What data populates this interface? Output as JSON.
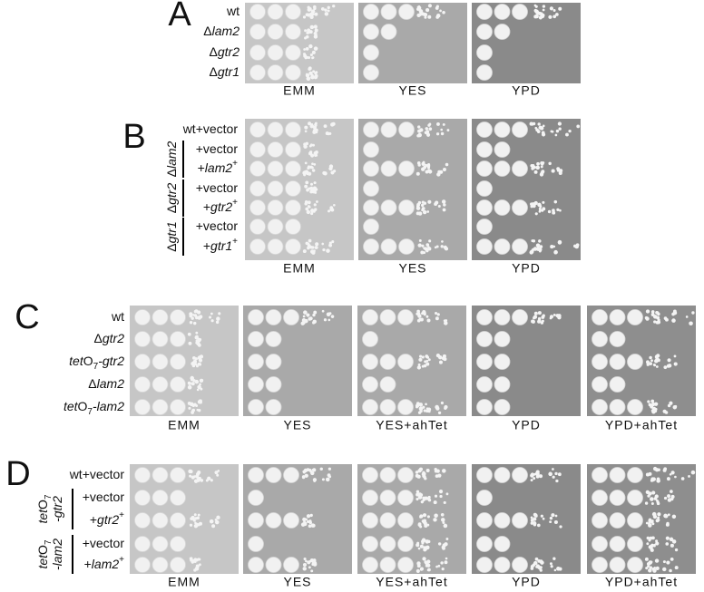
{
  "panels": [
    {
      "letter": "A",
      "plates": [
        "EMM",
        "YES",
        "YPD"
      ],
      "rows": [
        {
          "label": [
            {
              "text": "wt"
            }
          ]
        },
        {
          "label": [
            {
              "text": "Δ"
            },
            {
              "text": "lam2",
              "style": "italic"
            }
          ]
        },
        {
          "label": [
            {
              "text": "Δ"
            },
            {
              "text": "gtr2",
              "style": "italic"
            }
          ]
        },
        {
          "label": [
            {
              "text": "Δ"
            },
            {
              "text": "gtr1",
              "style": "italic"
            }
          ]
        }
      ]
    },
    {
      "letter": "B",
      "plates": [
        "EMM",
        "YES",
        "YPD"
      ],
      "rows": [
        {
          "label": [
            {
              "text": "wt+vector"
            }
          ]
        },
        {
          "group": [
            [
              {
                "text": "Δ"
              },
              {
                "text": "lam2",
                "style": "italic"
              }
            ]
          ],
          "rows": [
            {
              "label": [
                {
                  "text": "+vector"
                }
              ]
            },
            {
              "label": [
                {
                  "text": "+"
                },
                {
                  "text": "lam2",
                  "style": "italic"
                },
                {
                  "text": "+",
                  "style": "sup"
                }
              ]
            }
          ]
        },
        {
          "group": [
            [
              {
                "text": "Δ"
              },
              {
                "text": "gtr2",
                "style": "italic"
              }
            ]
          ],
          "rows": [
            {
              "label": [
                {
                  "text": "+vector"
                }
              ]
            },
            {
              "label": [
                {
                  "text": "+"
                },
                {
                  "text": "gtr2",
                  "style": "italic"
                },
                {
                  "text": "+",
                  "style": "sup"
                }
              ]
            }
          ]
        },
        {
          "group": [
            [
              {
                "text": "Δ"
              },
              {
                "text": "gtr1",
                "style": "italic"
              }
            ]
          ],
          "rows": [
            {
              "label": [
                {
                  "text": "+vector"
                }
              ]
            },
            {
              "label": [
                {
                  "text": "+"
                },
                {
                  "text": "gtr1",
                  "style": "italic"
                },
                {
                  "text": "+",
                  "style": "sup"
                }
              ]
            }
          ]
        }
      ]
    },
    {
      "letter": "C",
      "plates": [
        "EMM",
        "YES",
        "YES+ahTet",
        "YPD",
        "YPD+ahTet"
      ],
      "rows": [
        {
          "label": [
            {
              "text": "wt"
            }
          ]
        },
        {
          "label": [
            {
              "text": "Δ"
            },
            {
              "text": "gtr2",
              "style": "italic"
            }
          ]
        },
        {
          "label": [
            {
              "text": "tet",
              "style": "italic"
            },
            {
              "text": "O"
            },
            {
              "text": "7",
              "style": "sub"
            },
            {
              "text": "-gtr2",
              "style": "italic"
            }
          ]
        },
        {
          "label": [
            {
              "text": "Δ"
            },
            {
              "text": "lam2",
              "style": "italic"
            }
          ]
        },
        {
          "label": [
            {
              "text": "tet",
              "style": "italic"
            },
            {
              "text": "O"
            },
            {
              "text": "7",
              "style": "sub"
            },
            {
              "text": "-lam2",
              "style": "italic"
            }
          ]
        }
      ]
    },
    {
      "letter": "D",
      "plates": [
        "EMM",
        "YES",
        "YES+ahTet",
        "YPD",
        "YPD+ahTet"
      ],
      "rows": [
        {
          "label": [
            {
              "text": "wt+vector"
            }
          ]
        },
        {
          "group": [
            [
              {
                "text": "tet",
                "style": "italic"
              },
              {
                "text": "O"
              },
              {
                "text": "7",
                "style": "sub"
              }
            ],
            [
              {
                "text": "-gtr2",
                "style": "italic"
              }
            ]
          ],
          "rows": [
            {
              "label": [
                {
                  "text": "+vector"
                }
              ]
            },
            {
              "label": [
                {
                  "text": "+"
                },
                {
                  "text": "gtr2",
                  "style": "italic"
                },
                {
                  "text": "+",
                  "style": "sup"
                }
              ]
            }
          ]
        },
        {
          "group": [
            [
              {
                "text": "tet",
                "style": "italic"
              },
              {
                "text": "O"
              },
              {
                "text": "7",
                "style": "sub"
              }
            ],
            [
              {
                "text": "-lam2",
                "style": "italic"
              }
            ]
          ],
          "rows": [
            {
              "label": [
                {
                  "text": "+vector"
                }
              ]
            },
            {
              "label": [
                {
                  "text": "+"
                },
                {
                  "text": "lam2",
                  "style": "italic"
                },
                {
                  "text": "+",
                  "style": "sup"
                }
              ]
            }
          ]
        }
      ]
    }
  ]
}
